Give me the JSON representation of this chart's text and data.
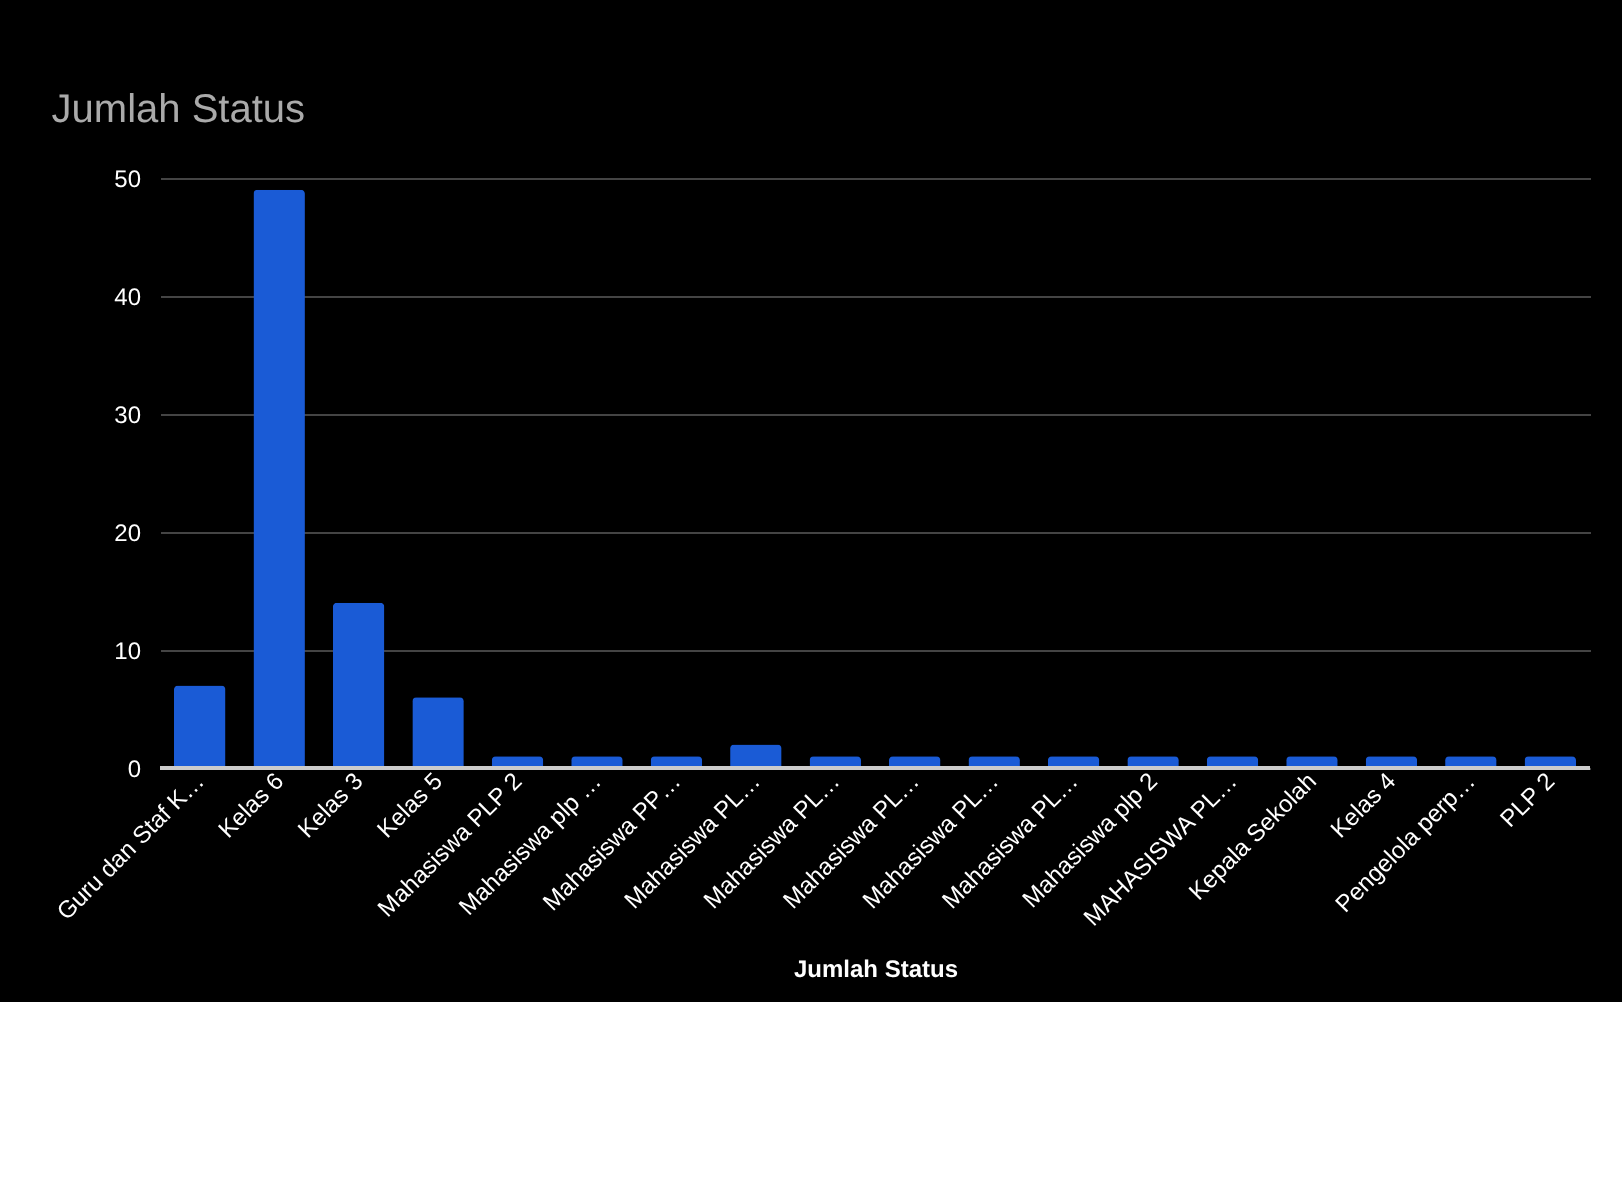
{
  "chart_data": {
    "type": "bar",
    "title": "Jumlah Status",
    "xlabel": "Jumlah Status",
    "categories": [
      "Guru dan Staf K…",
      "Kelas 6",
      "Kelas 3",
      "Kelas 5",
      "Mahasiswa PLP 2",
      "Mahasiswa plp …",
      "Mahasiswa PP…",
      "Mahasiswa PL…",
      "Mahasiswa PL…",
      "Mahasiswa PL…",
      "Mahasiswa PL…",
      "Mahasiswa PL…",
      "Mahasiswa plp 2",
      "MAHASISWA PL…",
      "Kepala Sekolah",
      "Kelas 4",
      "Pengelola perp…",
      "PLP 2"
    ],
    "values": [
      7,
      49,
      14,
      6,
      1,
      1,
      1,
      2,
      1,
      1,
      1,
      1,
      1,
      1,
      1,
      1,
      1,
      1
    ],
    "color": "#1a5bd6",
    "ylim": [
      0,
      50
    ],
    "yticks": [
      0,
      10,
      20,
      30,
      40,
      50
    ],
    "grid": "y"
  }
}
